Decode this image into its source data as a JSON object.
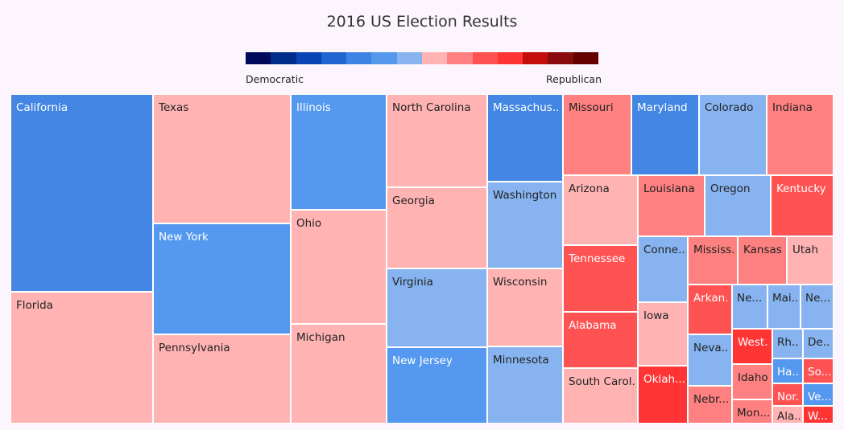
{
  "chart_data": {
    "type": "treemap",
    "title": "2016 US Election Results",
    "legend": {
      "left_label": "Democratic",
      "right_label": "Republican",
      "colors": [
        "#000a5c",
        "#002d8b",
        "#0a45b5",
        "#2166d0",
        "#3c84e4",
        "#5598ec",
        "#87b4f0",
        "#ffb3b3",
        "#ff8080",
        "#ff5252",
        "#ff3535",
        "#c40d0d",
        "#8a0b0b",
        "#650000"
      ]
    },
    "colors": {
      "D1": "#4386e3",
      "D2": "#5499ef",
      "D3": "#87b4f0",
      "R1": "#ffb3b3",
      "R2": "#ff8080",
      "R3": "#ff5252",
      "R4": "#ff3535"
    },
    "states": [
      {
        "name": "California",
        "label": "California",
        "shade": "D1"
      },
      {
        "name": "Florida",
        "label": "Florida",
        "shade": "R1"
      },
      {
        "name": "Texas",
        "label": "Texas",
        "shade": "R1"
      },
      {
        "name": "New York",
        "label": "New York",
        "shade": "D2"
      },
      {
        "name": "Pennsylvania",
        "label": "Pennsylvania",
        "shade": "R1"
      },
      {
        "name": "Illinois",
        "label": "Illinois",
        "shade": "D2"
      },
      {
        "name": "Ohio",
        "label": "Ohio",
        "shade": "R1"
      },
      {
        "name": "Michigan",
        "label": "Michigan",
        "shade": "R1"
      },
      {
        "name": "North Carolina",
        "label": "North Carolina",
        "shade": "R1"
      },
      {
        "name": "Georgia",
        "label": "Georgia",
        "shade": "R1"
      },
      {
        "name": "Virginia",
        "label": "Virginia",
        "shade": "D3"
      },
      {
        "name": "New Jersey",
        "label": "New Jersey",
        "shade": "D2"
      },
      {
        "name": "Massachusetts",
        "label": "Massachus...",
        "shade": "D1"
      },
      {
        "name": "Washington",
        "label": "Washington",
        "shade": "D3"
      },
      {
        "name": "Wisconsin",
        "label": "Wisconsin",
        "shade": "R1"
      },
      {
        "name": "Minnesota",
        "label": "Minnesota",
        "shade": "D3"
      },
      {
        "name": "Missouri",
        "label": "Missouri",
        "shade": "R2"
      },
      {
        "name": "Maryland",
        "label": "Maryland",
        "shade": "D1"
      },
      {
        "name": "Colorado",
        "label": "Colorado",
        "shade": "D3"
      },
      {
        "name": "Indiana",
        "label": "Indiana",
        "shade": "R2"
      },
      {
        "name": "Arizona",
        "label": "Arizona",
        "shade": "R1"
      },
      {
        "name": "Tennessee",
        "label": "Tennessee",
        "shade": "R3"
      },
      {
        "name": "Alabama",
        "label": "Alabama",
        "shade": "R3"
      },
      {
        "name": "South Carolina",
        "label": "South Carol...",
        "shade": "R1"
      },
      {
        "name": "Louisiana",
        "label": "Louisiana",
        "shade": "R2"
      },
      {
        "name": "Oregon",
        "label": "Oregon",
        "shade": "D3"
      },
      {
        "name": "Kentucky",
        "label": "Kentucky",
        "shade": "R3"
      },
      {
        "name": "Connecticut",
        "label": "Conne...",
        "shade": "D3"
      },
      {
        "name": "Iowa",
        "label": "Iowa",
        "shade": "R1"
      },
      {
        "name": "Oklahoma",
        "label": "Oklah...",
        "shade": "R4"
      },
      {
        "name": "Mississippi",
        "label": "Mississ...",
        "shade": "R2"
      },
      {
        "name": "Kansas",
        "label": "Kansas",
        "shade": "R2"
      },
      {
        "name": "Utah",
        "label": "Utah",
        "shade": "R1"
      },
      {
        "name": "Arkansas",
        "label": "Arkan...",
        "shade": "R3"
      },
      {
        "name": "Nevada",
        "label": "Neva...",
        "shade": "D3"
      },
      {
        "name": "Nebraska",
        "label": "Nebr...",
        "shade": "R2"
      },
      {
        "name": "New Mexico",
        "label": "Ne...",
        "shade": "D3"
      },
      {
        "name": "Maine",
        "label": "Mai...",
        "shade": "D3"
      },
      {
        "name": "New Hampshire",
        "label": "Ne...",
        "shade": "D3"
      },
      {
        "name": "West Virginia",
        "label": "West...",
        "shade": "R4"
      },
      {
        "name": "Idaho",
        "label": "Idaho",
        "shade": "R2"
      },
      {
        "name": "Montana",
        "label": "Mon...",
        "shade": "R2"
      },
      {
        "name": "Rhode Island",
        "label": "Rh...",
        "shade": "D3"
      },
      {
        "name": "Delaware",
        "label": "De...",
        "shade": "D3"
      },
      {
        "name": "Hawaii",
        "label": "Ha...",
        "shade": "D2"
      },
      {
        "name": "South Dakota",
        "label": "So...",
        "shade": "R3"
      },
      {
        "name": "North Dakota",
        "label": "Nor...",
        "shade": "R3"
      },
      {
        "name": "Vermont",
        "label": "Ve...",
        "shade": "D2"
      },
      {
        "name": "Alaska",
        "label": "Ala...",
        "shade": "R1"
      },
      {
        "name": "Wyoming",
        "label": "W...",
        "shade": "R4"
      }
    ]
  }
}
